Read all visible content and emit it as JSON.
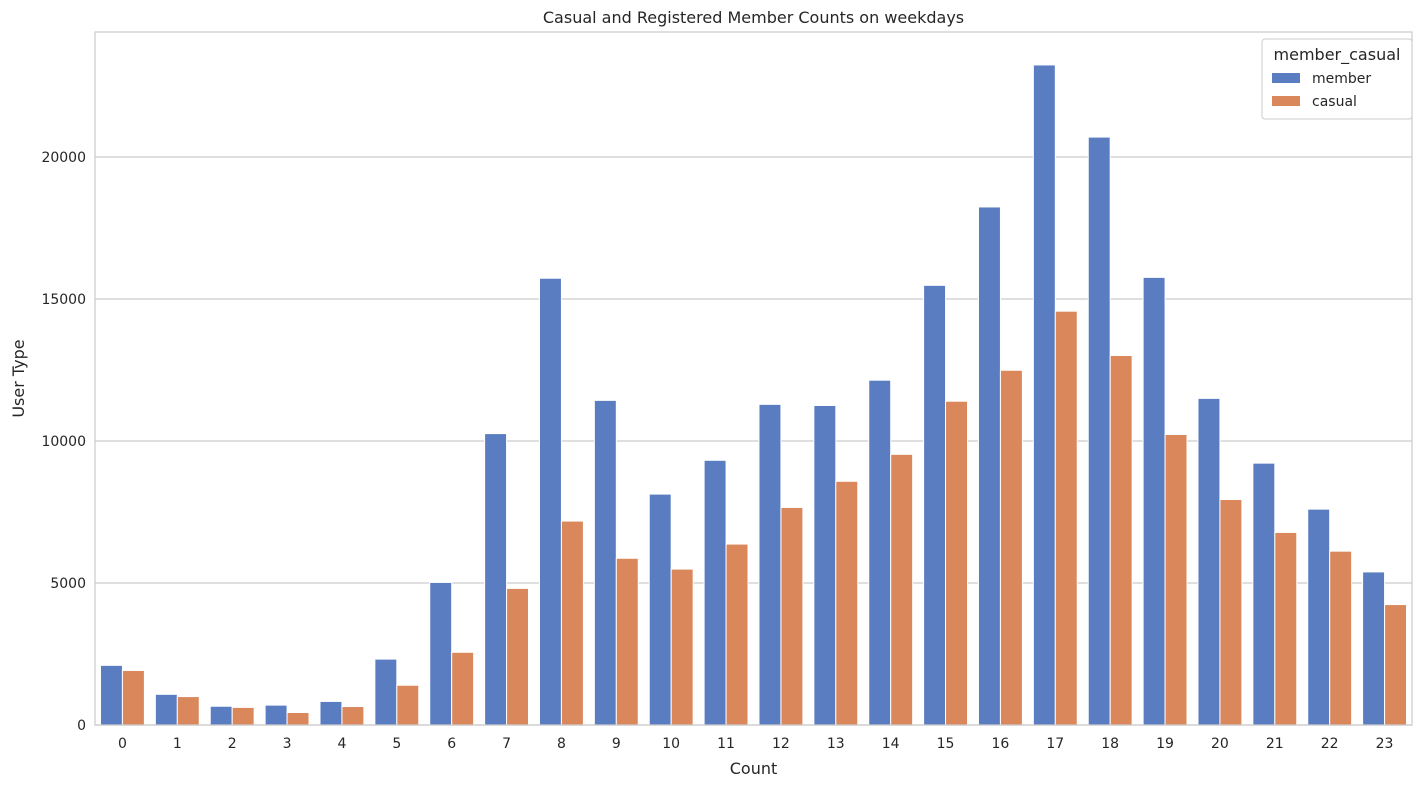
{
  "chart_data": {
    "type": "bar",
    "title": "Casual and Registered Member Counts on weekdays",
    "xlabel": "Count",
    "ylabel": "User Type",
    "categories": [
      "0",
      "1",
      "2",
      "3",
      "4",
      "5",
      "6",
      "7",
      "8",
      "9",
      "10",
      "11",
      "12",
      "13",
      "14",
      "15",
      "16",
      "17",
      "18",
      "19",
      "20",
      "21",
      "22",
      "23"
    ],
    "series": [
      {
        "name": "member",
        "color": "#5a7dc2",
        "values": [
          2100,
          1080,
          660,
          700,
          830,
          2320,
          5020,
          10260,
          15730,
          11430,
          8130,
          9320,
          11290,
          11250,
          12140,
          15480,
          18240,
          23240,
          20700,
          15760,
          11500,
          9220,
          7600,
          5390
        ]
      },
      {
        "name": "casual",
        "color": "#d9875b",
        "values": [
          1920,
          1000,
          620,
          440,
          650,
          1400,
          2560,
          4810,
          7180,
          5870,
          5490,
          6370,
          7660,
          8580,
          9530,
          11400,
          12490,
          14570,
          13010,
          10230,
          7940,
          6780,
          6120,
          4240
        ]
      }
    ],
    "ylim": [
      0,
      24400
    ],
    "yticks": [
      0,
      5000,
      10000,
      15000,
      20000
    ],
    "grid": "horizontal",
    "legend": {
      "title": "member_casual",
      "position": "top-right"
    }
  }
}
